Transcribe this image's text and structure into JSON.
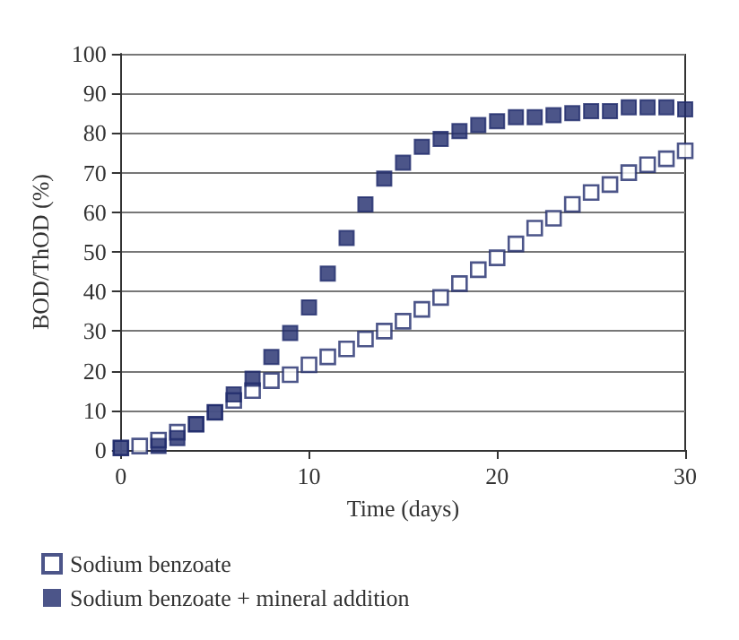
{
  "chart_data": {
    "type": "scatter",
    "xlabel": "Time (days)",
    "ylabel": "BOD/ThOD (%)",
    "xlim": [
      0,
      30
    ],
    "xticks": [
      0,
      10,
      20,
      30
    ],
    "ylim": [
      0,
      100
    ],
    "yticks": [
      0,
      10,
      20,
      30,
      40,
      50,
      60,
      70,
      80,
      90,
      100
    ],
    "grid": "y",
    "legend": "bottom left",
    "marker": "square",
    "series": [
      {
        "name": "Sodium benzoate",
        "color": "#1f2a6b",
        "x": [
          0,
          1,
          2,
          3,
          4,
          5,
          6,
          7,
          8,
          9,
          10,
          11,
          12,
          13,
          14,
          15,
          16,
          17,
          18,
          19,
          20,
          21,
          22,
          23,
          24,
          25,
          26,
          27,
          28,
          29,
          30
        ],
        "values": [
          0.5,
          1,
          2.5,
          4.5,
          6.5,
          9.5,
          12.5,
          15,
          17.5,
          19,
          21.5,
          23.5,
          25.5,
          28,
          30,
          32.5,
          35.5,
          38.5,
          42,
          45.5,
          48.5,
          52,
          56,
          58.5,
          62,
          65,
          67,
          70,
          72,
          73.5,
          75.5
        ]
      },
      {
        "name": "Sodium benzoate + mineral addition",
        "color": "#1f2a6b",
        "x": [
          0,
          2,
          3,
          4,
          5,
          6,
          7,
          8,
          9,
          10,
          11,
          12,
          13,
          14,
          15,
          16,
          17,
          18,
          19,
          20,
          21,
          22,
          23,
          24,
          25,
          26,
          27,
          28,
          29,
          30
        ],
        "values": [
          0.5,
          1,
          3,
          6.5,
          9.5,
          14,
          18,
          23.5,
          29.5,
          36,
          44.5,
          53.5,
          62,
          68.5,
          72.5,
          76.5,
          78.5,
          80.5,
          82,
          83,
          84,
          84,
          84.5,
          85,
          85.5,
          85.5,
          86.5,
          86.5,
          86.5,
          86
        ]
      }
    ]
  }
}
